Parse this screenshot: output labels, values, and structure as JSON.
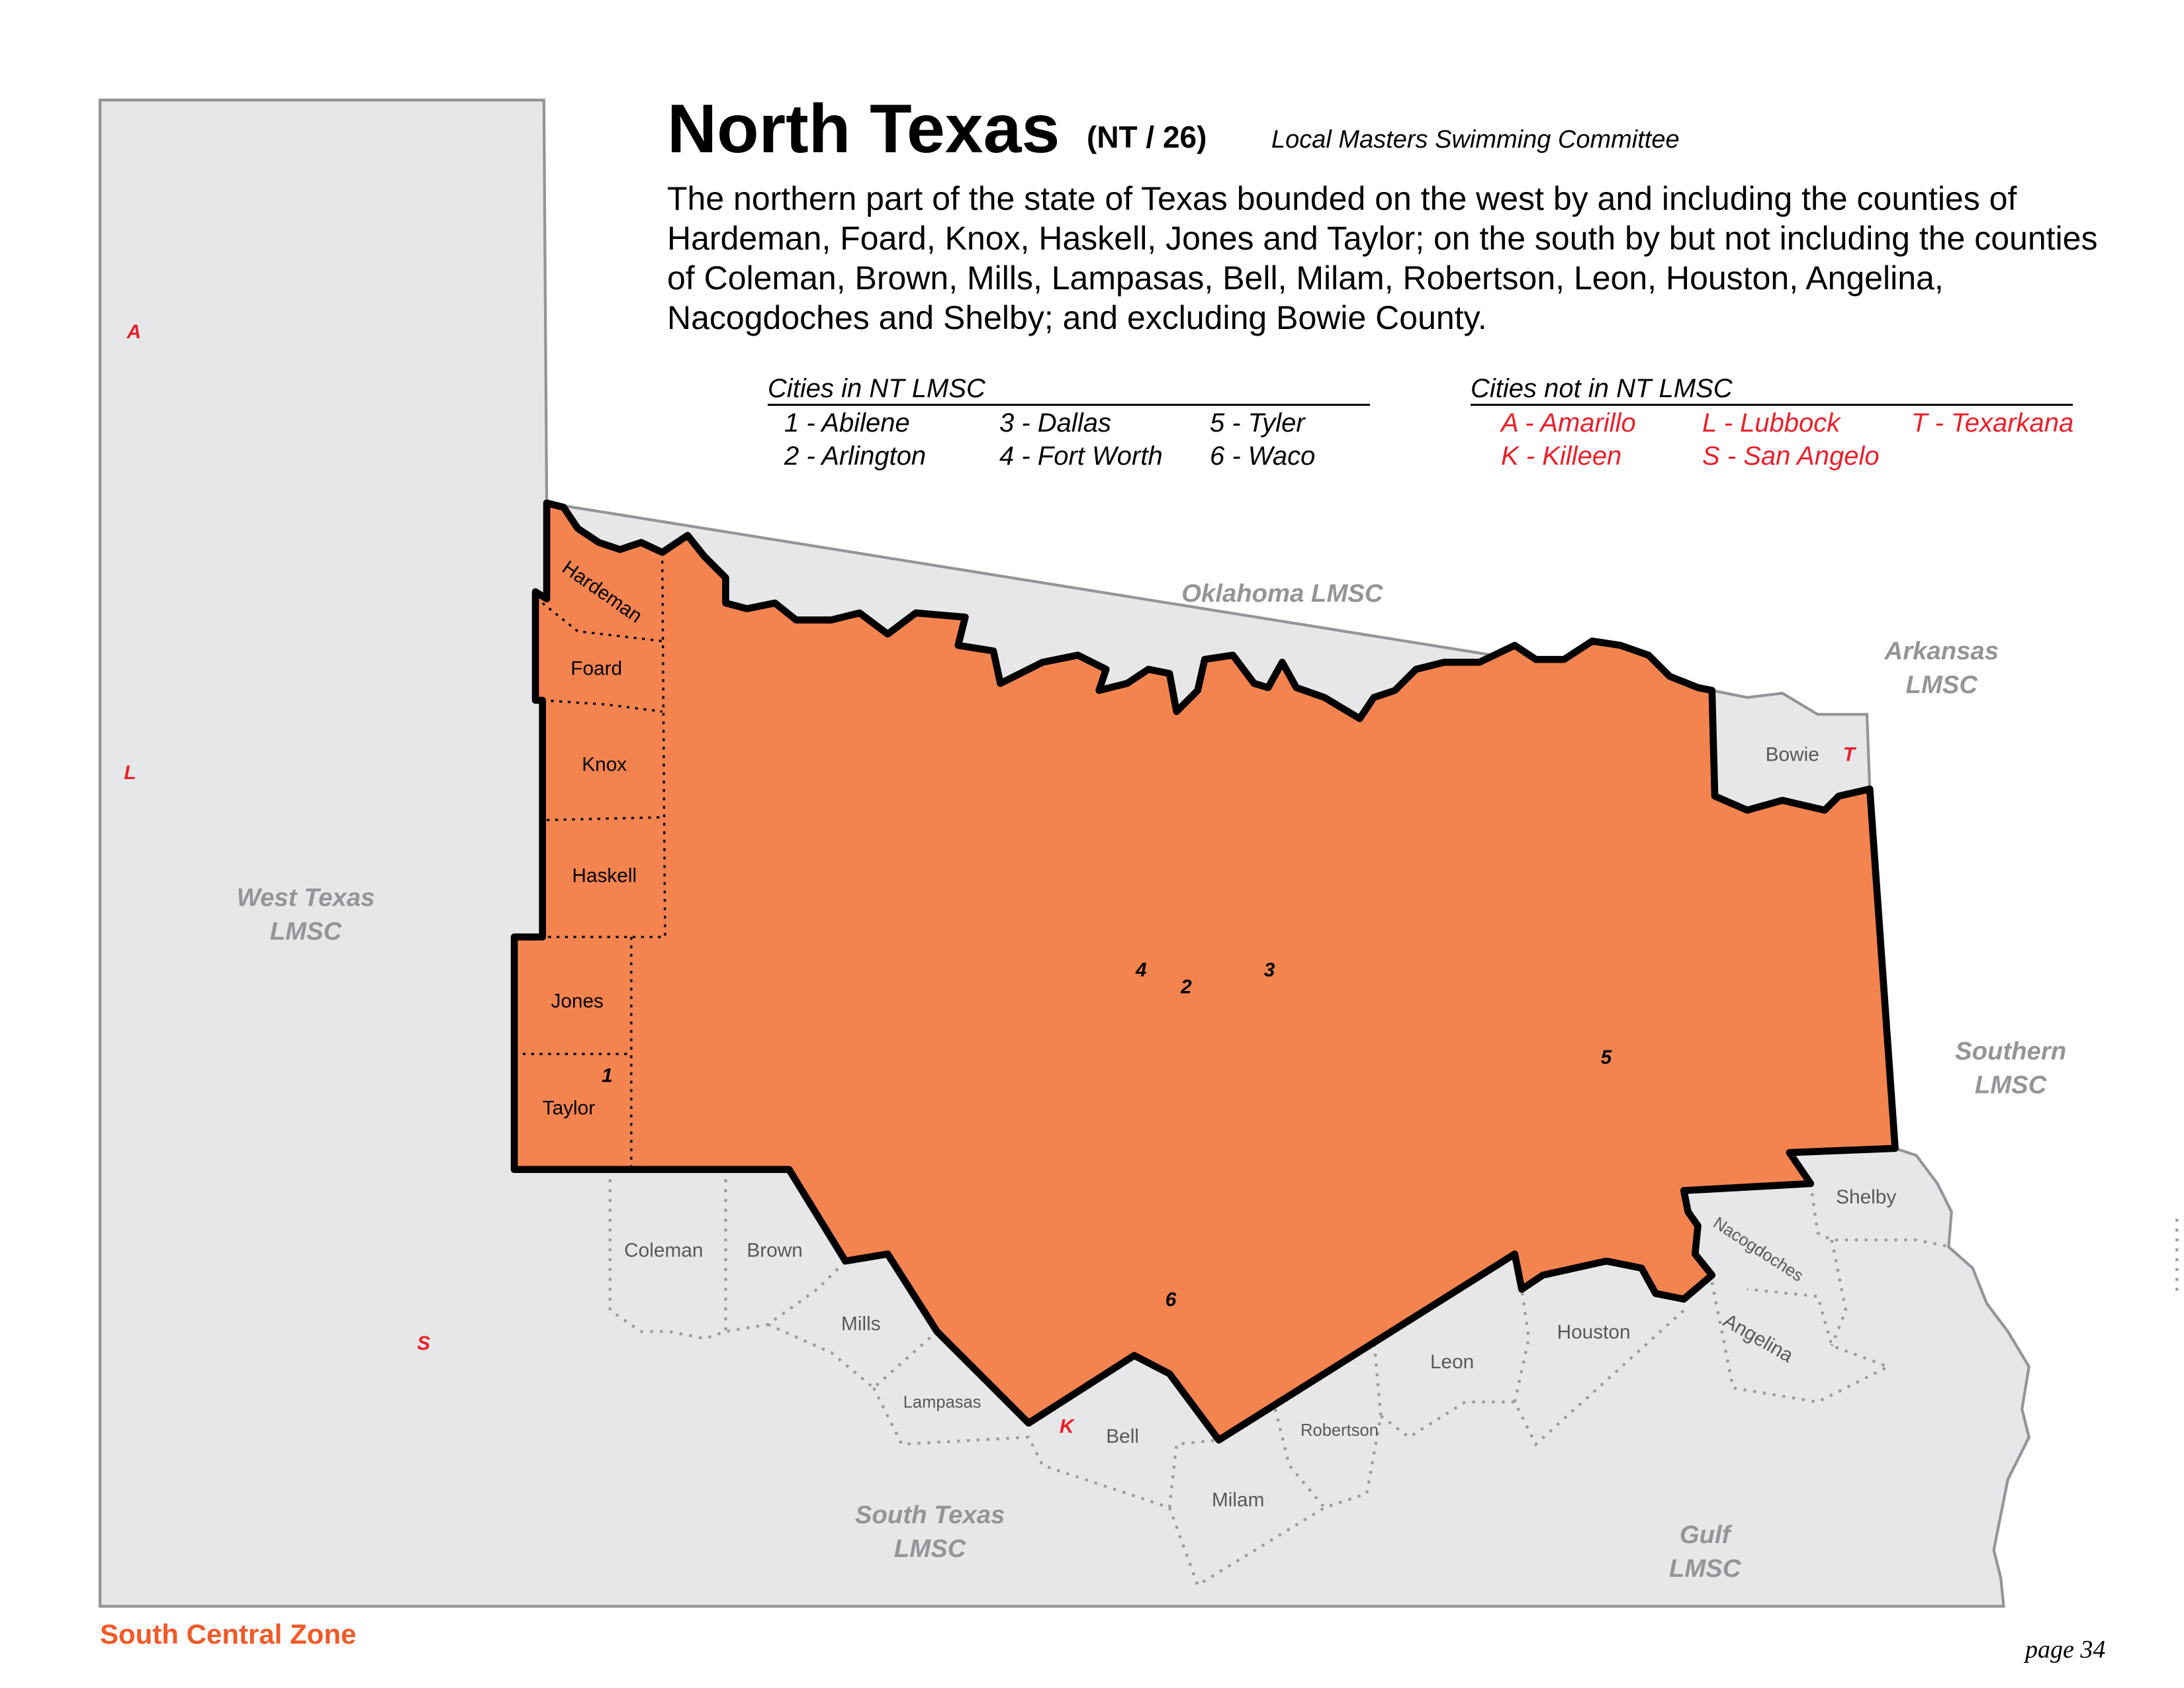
{
  "header": {
    "title": "North Texas",
    "abbr": "(NT / 26)",
    "subtitle": "Local Masters Swimming Committee"
  },
  "description": "The northern part of the state of Texas bounded on the west by and including the counties of Hardeman, Foard, Knox, Haskell, Jones and Taylor; on the south by but not including the counties of Coleman, Brown, Mills, Lampasas, Bell, Milam, Robertson, Leon, Houston, Angelina, Nacogdoches and Shelby; and excluding Bowie County.",
  "legend": {
    "in_title": "Cities in NT LMSC",
    "in": [
      "1 - Abilene",
      "2 - Arlington",
      "3 - Dallas",
      "4 - Fort Worth",
      "5 - Tyler",
      "6 - Waco"
    ],
    "out_title": "Cities not in NT LMSC",
    "out": [
      "A - Amarillo",
      "K - Killeen",
      "L - Lubbock",
      "S - San Angelo",
      "T - Texarkana"
    ]
  },
  "colors": {
    "region": "#f4844f",
    "neighbor": "#e6e7e9",
    "city_out": "#e8202a",
    "zone": "#f05a28",
    "lmsc_label": "#939598"
  },
  "map": {
    "lmsc": [
      "Oklahoma LMSC",
      "Arkansas LMSC",
      "West Texas LMSC",
      "Southern LMSC",
      "South Texas LMSC",
      "Gulf LMSC"
    ],
    "counties_in": [
      "Hardeman",
      "Foard",
      "Knox",
      "Haskell",
      "Jones",
      "Taylor"
    ],
    "counties_out": [
      "Bowie",
      "Coleman",
      "Brown",
      "Mills",
      "Lampasas",
      "Bell",
      "Milam",
      "Robertson",
      "Leon",
      "Houston",
      "Nacogdoches",
      "Angelina",
      "Shelby"
    ],
    "markers_in": [
      "1",
      "2",
      "3",
      "4",
      "5",
      "6"
    ],
    "markers_out": [
      "A",
      "L",
      "S",
      "K",
      "T"
    ]
  },
  "footer": {
    "zone": "South Central Zone",
    "page": "page 34"
  }
}
